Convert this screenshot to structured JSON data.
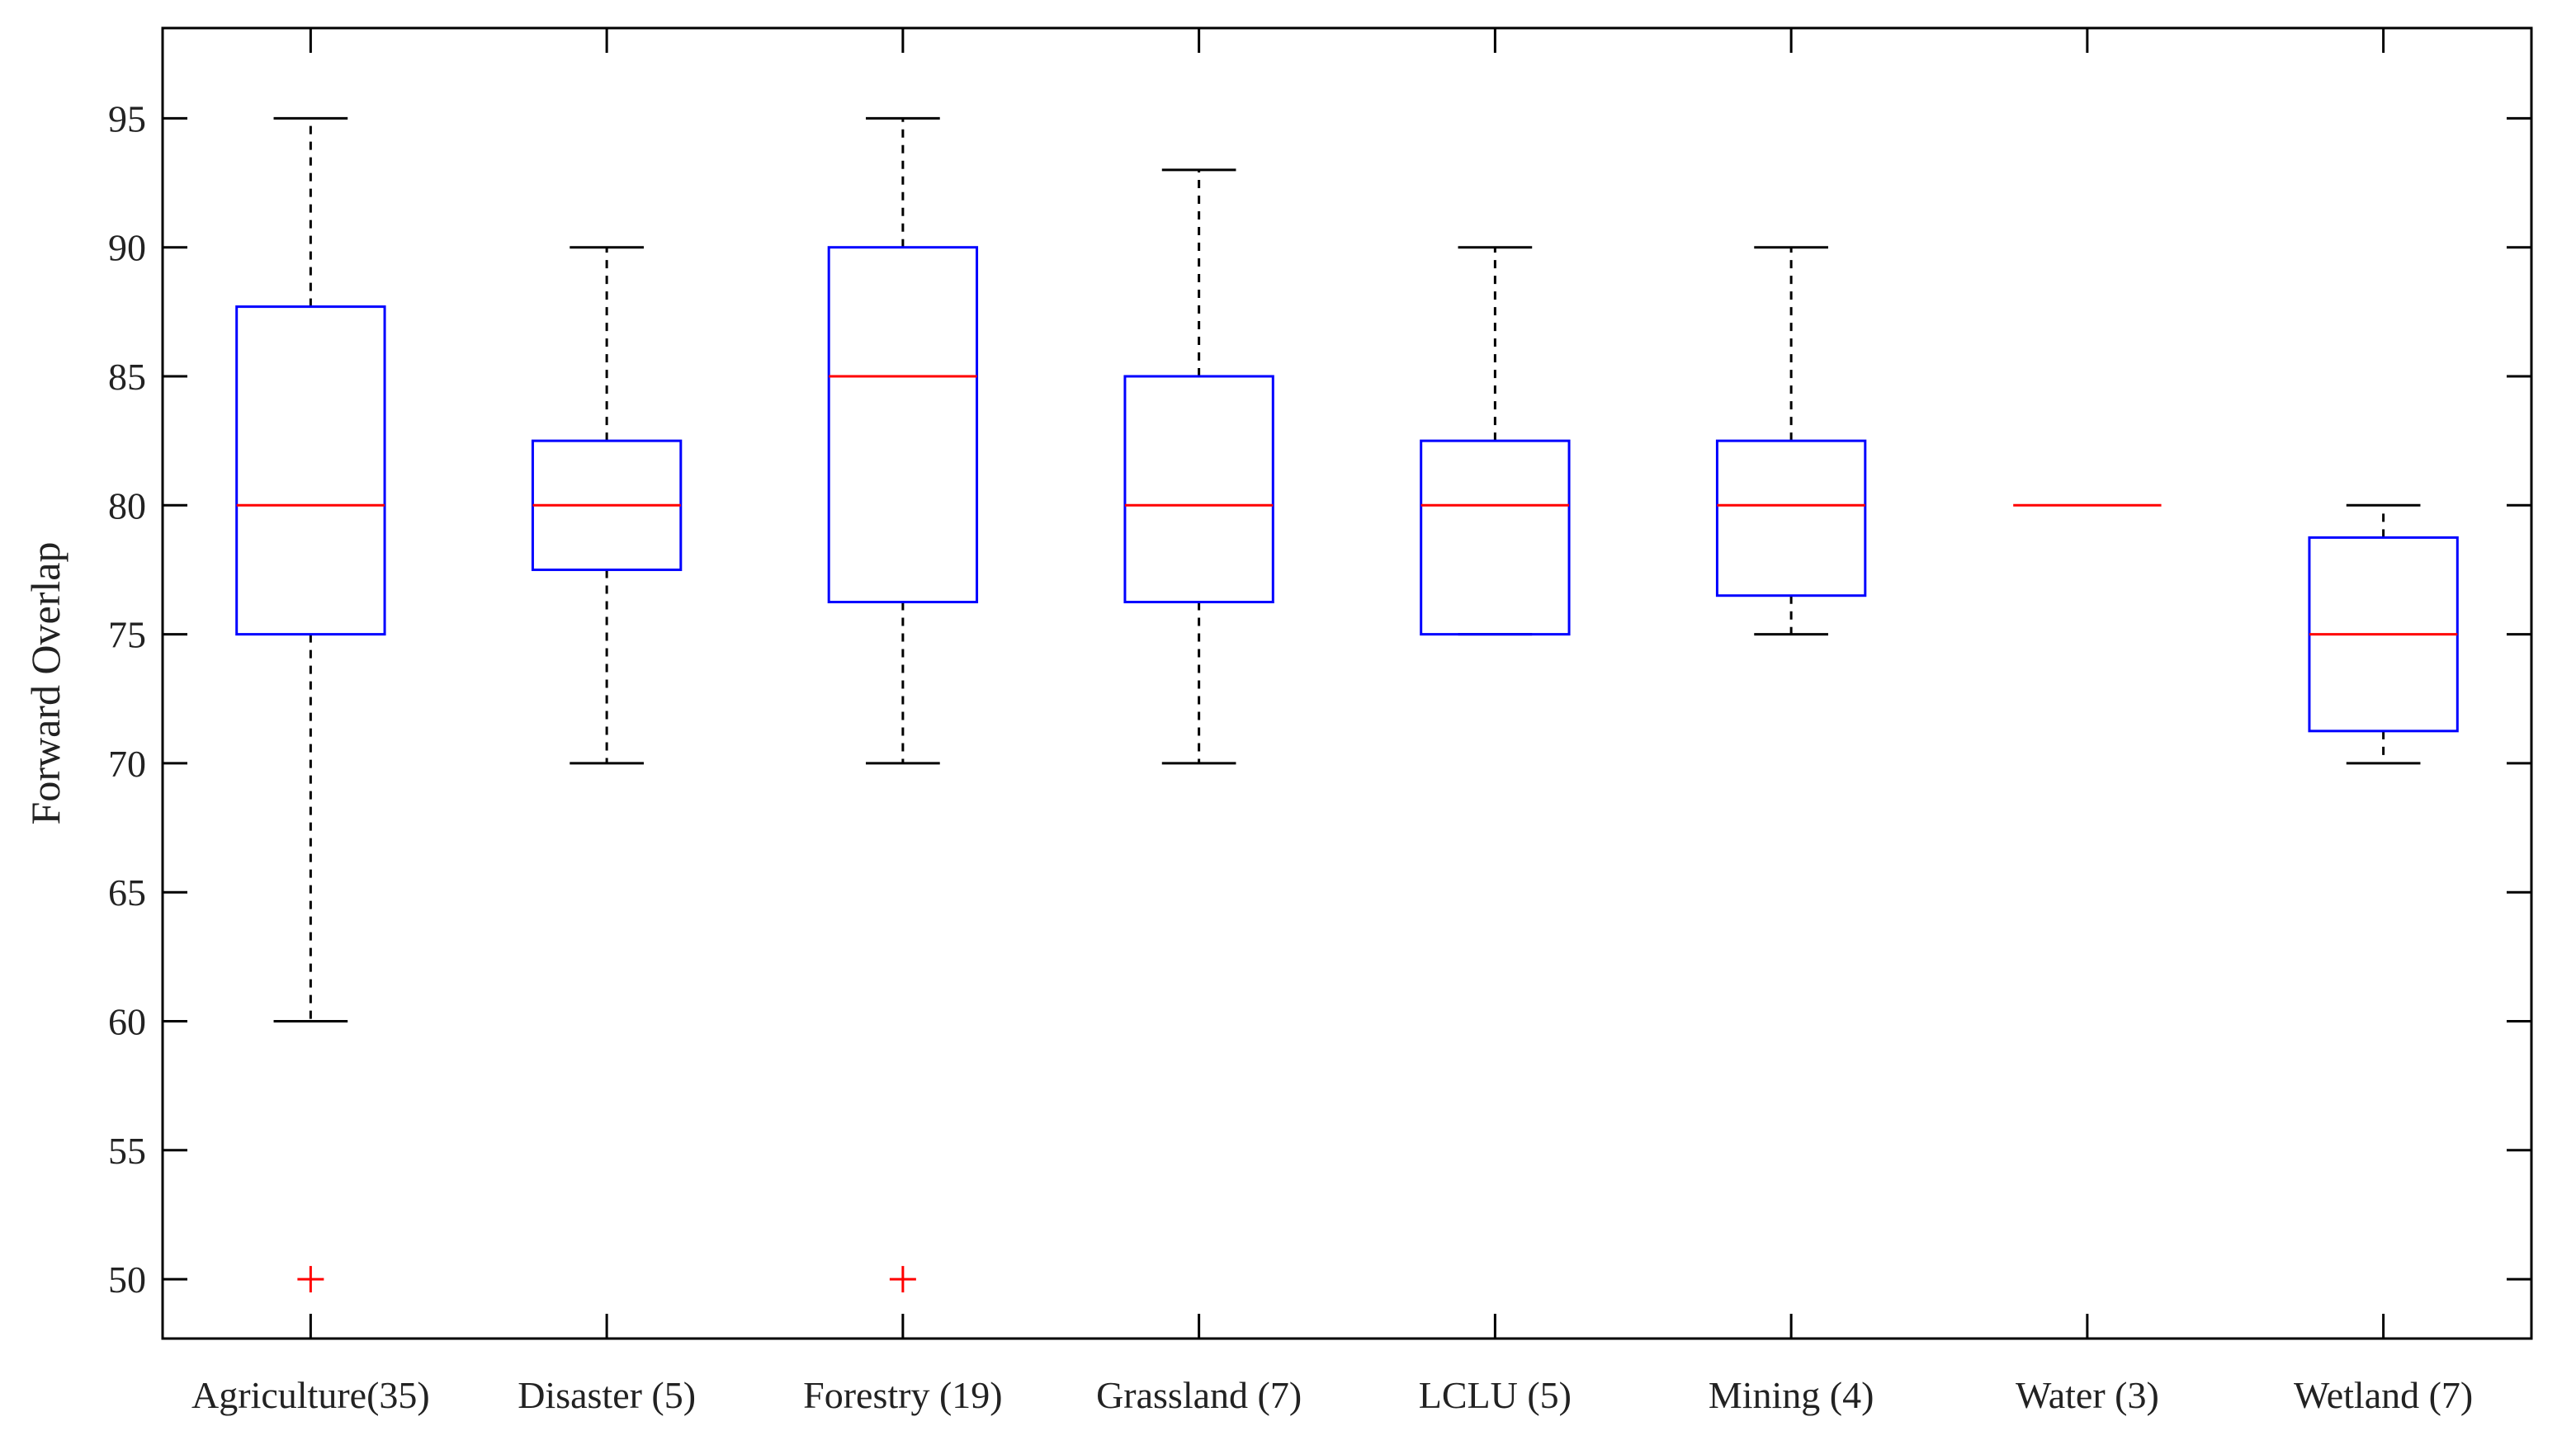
{
  "chart_data": {
    "type": "box",
    "title": "",
    "xlabel": "",
    "ylabel": "Forward Overlap",
    "ylim": [
      47.7,
      98.5
    ],
    "yticks": [
      50,
      55,
      60,
      65,
      70,
      75,
      80,
      85,
      90,
      95
    ],
    "categories": [
      "Agriculture(35)",
      "Disaster (5)",
      "Forestry (19)",
      "Grassland (7)",
      "LCLU (5)",
      "Mining (4)",
      "Water (3)",
      "Wetland (7)"
    ],
    "boxes": [
      {
        "whisker_low": 60,
        "q1": 75,
        "median": 80,
        "q3": 87.7,
        "whisker_high": 95,
        "outliers": [
          50
        ]
      },
      {
        "whisker_low": 70,
        "q1": 77.5,
        "median": 80,
        "q3": 82.5,
        "whisker_high": 90,
        "outliers": []
      },
      {
        "whisker_low": 70,
        "q1": 76.25,
        "median": 85,
        "q3": 90,
        "whisker_high": 95,
        "outliers": [
          50
        ]
      },
      {
        "whisker_low": 70,
        "q1": 76.25,
        "median": 80,
        "q3": 85,
        "whisker_high": 93,
        "outliers": []
      },
      {
        "whisker_low": 75,
        "q1": 75,
        "median": 80,
        "q3": 82.5,
        "whisker_high": 90,
        "outliers": []
      },
      {
        "whisker_low": 75,
        "q1": 76.5,
        "median": 80,
        "q3": 82.5,
        "whisker_high": 90,
        "outliers": []
      },
      {
        "whisker_low": 80,
        "q1": 80,
        "median": 80,
        "q3": 80,
        "whisker_high": 80,
        "outliers": []
      },
      {
        "whisker_low": 70,
        "q1": 71.25,
        "median": 75,
        "q3": 78.75,
        "whisker_high": 80,
        "outliers": []
      }
    ],
    "colors": {
      "box": "#0000ff",
      "median": "#ff0000",
      "whisker": "#000000",
      "outlier": "#ff0000",
      "axis": "#000000"
    },
    "grid": false,
    "legend": "none"
  }
}
